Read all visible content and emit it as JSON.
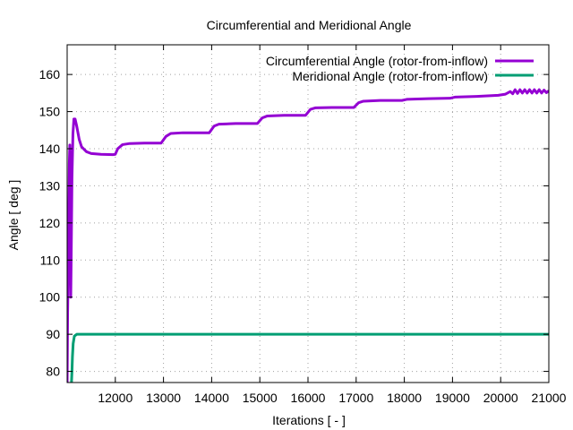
{
  "chart_data": {
    "type": "line",
    "title": "Circumferential and Meridional Angle",
    "xlabel": "Iterations [ - ]",
    "ylabel": "Angle [ deg ]",
    "xlim": [
      11000,
      21000
    ],
    "ylim": [
      77,
      168
    ],
    "xticks": [
      12000,
      13000,
      14000,
      15000,
      16000,
      17000,
      18000,
      19000,
      20000,
      21000
    ],
    "yticks": [
      80,
      90,
      100,
      110,
      120,
      130,
      140,
      150,
      160
    ],
    "grid": true,
    "legend_position": "top-right",
    "series": [
      {
        "name": "Circumferential Angle (rotor-from-inflow)",
        "color": "#9400d3",
        "points": [
          [
            11000,
            77
          ],
          [
            11010,
            96
          ],
          [
            11030,
            115
          ],
          [
            11045,
            136
          ],
          [
            11055,
            141
          ],
          [
            11065,
            125
          ],
          [
            11075,
            100
          ],
          [
            11085,
            112
          ],
          [
            11100,
            132
          ],
          [
            11120,
            144
          ],
          [
            11140,
            148
          ],
          [
            11165,
            148
          ],
          [
            11200,
            146
          ],
          [
            11250,
            142.5
          ],
          [
            11300,
            140.5
          ],
          [
            11400,
            139.2
          ],
          [
            11500,
            138.7
          ],
          [
            11700,
            138.5
          ],
          [
            11950,
            138.4
          ],
          [
            12000,
            138.5
          ],
          [
            12050,
            140.0
          ],
          [
            12150,
            141.1
          ],
          [
            12300,
            141.4
          ],
          [
            12600,
            141.5
          ],
          [
            12950,
            141.5
          ],
          [
            13050,
            143.3
          ],
          [
            13150,
            144.1
          ],
          [
            13400,
            144.3
          ],
          [
            13950,
            144.3
          ],
          [
            14050,
            146.1
          ],
          [
            14150,
            146.6
          ],
          [
            14500,
            146.8
          ],
          [
            14950,
            146.8
          ],
          [
            15050,
            148.3
          ],
          [
            15150,
            148.8
          ],
          [
            15500,
            149.0
          ],
          [
            15950,
            149.0
          ],
          [
            16050,
            150.6
          ],
          [
            16150,
            151.0
          ],
          [
            16500,
            151.1
          ],
          [
            16950,
            151.1
          ],
          [
            17050,
            152.4
          ],
          [
            17150,
            152.8
          ],
          [
            17500,
            153.0
          ],
          [
            17950,
            153.0
          ],
          [
            18050,
            153.3
          ],
          [
            18500,
            153.5
          ],
          [
            18950,
            153.6
          ],
          [
            19050,
            153.9
          ],
          [
            19500,
            154.1
          ],
          [
            19950,
            154.4
          ],
          [
            20100,
            154.7
          ],
          [
            20200,
            155.4
          ],
          [
            20250,
            154.8
          ],
          [
            20300,
            155.9
          ],
          [
            20350,
            154.9
          ],
          [
            20400,
            155.9
          ],
          [
            20450,
            155.0
          ],
          [
            20500,
            155.9
          ],
          [
            20550,
            155.0
          ],
          [
            20600,
            155.9
          ],
          [
            20650,
            155.0
          ],
          [
            20700,
            155.9
          ],
          [
            20750,
            155.0
          ],
          [
            20800,
            155.9
          ],
          [
            20850,
            155.0
          ],
          [
            20900,
            155.8
          ],
          [
            20950,
            155.1
          ],
          [
            21000,
            155.6
          ]
        ]
      },
      {
        "name": "Meridional Angle (rotor-from-inflow)",
        "color": "#009e73",
        "points": [
          [
            11090,
            77
          ],
          [
            11100,
            80
          ],
          [
            11110,
            84
          ],
          [
            11125,
            87.5
          ],
          [
            11150,
            89.5
          ],
          [
            11200,
            90
          ],
          [
            12000,
            90
          ],
          [
            16000,
            90
          ],
          [
            21000,
            90
          ]
        ]
      }
    ]
  }
}
